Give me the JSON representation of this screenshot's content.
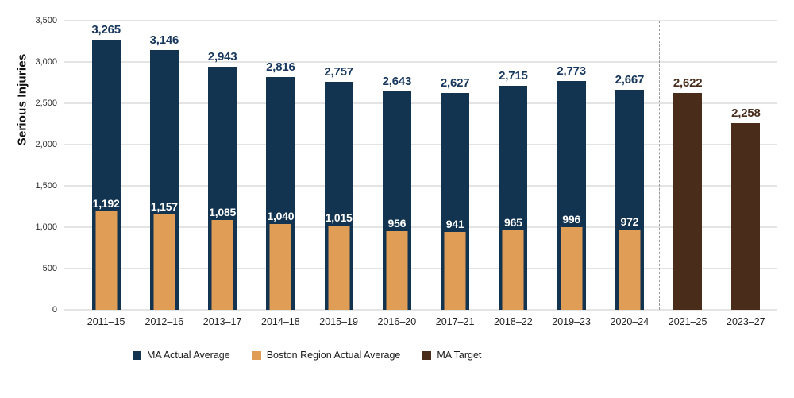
{
  "chart_data": {
    "type": "bar",
    "title": "",
    "ylabel": "Serious Injuries",
    "xlabel": "",
    "ylim": [
      0,
      3500
    ],
    "ytick_step": 500,
    "grid": true,
    "legend_position": "bottom",
    "categories": [
      "2011–15",
      "2012–16",
      "2013–17",
      "2014–18",
      "2015–19",
      "2016–20",
      "2017–21",
      "2018–22",
      "2019–23",
      "2020–24",
      "2021–25",
      "2023–27"
    ],
    "series": [
      {
        "name": "MA Actual Average",
        "color": "#133450",
        "label_color": "#17375c",
        "values": [
          3265,
          3146,
          2943,
          2816,
          2757,
          2643,
          2627,
          2715,
          2773,
          2667,
          null,
          null
        ]
      },
      {
        "name": "Boston Region Actual Average",
        "color": "#df9d56",
        "label_color": "#ffffff",
        "values": [
          1192,
          1157,
          1085,
          1040,
          1015,
          956,
          941,
          965,
          996,
          972,
          null,
          null
        ]
      },
      {
        "name": "MA Target",
        "color": "#4a2c1b",
        "label_color": "#4a2c1b",
        "values": [
          null,
          null,
          null,
          null,
          null,
          null,
          null,
          null,
          null,
          null,
          2622,
          2258
        ]
      }
    ],
    "separator_after_category_index": 9,
    "separator_style": "dashed-gray"
  },
  "legend": {
    "items": [
      {
        "label": "MA Actual Average",
        "color": "#133450",
        "icon": "square-swatch-icon"
      },
      {
        "label": "Boston Region Actual Average",
        "color": "#df9d56",
        "icon": "square-swatch-icon"
      },
      {
        "label": "MA Target",
        "color": "#4a2c1b",
        "icon": "square-swatch-icon"
      }
    ]
  }
}
